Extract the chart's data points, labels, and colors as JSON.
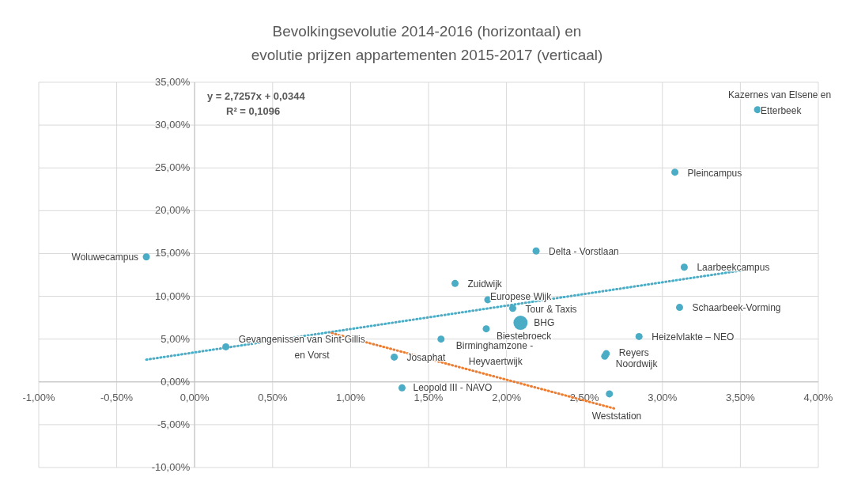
{
  "chart_data": {
    "type": "bubble",
    "title": "Bevolkingsevolutie  2014-2016 (horizontaal) en evolutie prijzen appartementen 2015-2017 (verticaal)",
    "xlim": [
      -0.01,
      0.04
    ],
    "xticks": [
      {
        "value": -0.01,
        "label": "-1,00%"
      },
      {
        "value": -0.005,
        "label": "-0,50%"
      },
      {
        "value": 0,
        "label": "0,00%"
      },
      {
        "value": 0.005,
        "label": "0,50%"
      },
      {
        "value": 0.01,
        "label": "1,00%"
      },
      {
        "value": 0.015,
        "label": "1,50%"
      },
      {
        "value": 0.02,
        "label": "2,00%"
      },
      {
        "value": 0.025,
        "label": "2,50%"
      },
      {
        "value": 0.03,
        "label": "3,00%"
      },
      {
        "value": 0.035,
        "label": "3,50%"
      },
      {
        "value": 0.04,
        "label": "4,00%"
      }
    ],
    "ylim": [
      -0.1,
      0.35
    ],
    "yticks": [
      {
        "value": -0.1,
        "label": "-10,00%"
      },
      {
        "value": -0.05,
        "label": "-5,00%"
      },
      {
        "value": 0,
        "label": "0,00%"
      },
      {
        "value": 0.05,
        "label": "5,00%"
      },
      {
        "value": 0.1,
        "label": "10,00%"
      },
      {
        "value": 0.15,
        "label": "15,00%"
      },
      {
        "value": 0.2,
        "label": "20,00%"
      },
      {
        "value": 0.25,
        "label": "25,00%"
      },
      {
        "value": 0.3,
        "label": "30,00%"
      },
      {
        "value": 0.35,
        "label": "35,00%"
      }
    ],
    "grid": true,
    "series": [
      {
        "color": "#4bacc6",
        "marker": "circle",
        "x": [
          -0.0031,
          0.0361,
          0.0308,
          0.0219,
          0.0314,
          0.0167,
          0.0188,
          0.0204,
          0.0209,
          0.0187,
          0.0158,
          0.0311,
          0.0285,
          0.0264,
          0.0263,
          0.002,
          0.0128,
          0.0133,
          0.0266
        ],
        "values": [
          0.146,
          0.318,
          0.245,
          0.153,
          0.134,
          0.115,
          0.096,
          0.086,
          0.069,
          0.062,
          0.05,
          0.087,
          0.053,
          0.033,
          0.03,
          0.041,
          0.029,
          -0.007,
          -0.014
        ],
        "sizes": [
          0.25,
          0.25,
          0.25,
          0.25,
          0.25,
          0.25,
          0.25,
          0.25,
          1,
          0.25,
          0.25,
          0.25,
          0.25,
          0.25,
          0.25,
          0.25,
          0.25,
          0.25,
          0.25
        ]
      },
      {
        "type": "line",
        "color": "#4bacc6",
        "line_style": "dotted",
        "x": [
          -0.0031,
          0.0361
        ],
        "values": [
          0.026,
          0.133
        ]
      },
      {
        "type": "line",
        "color": "#ed7d31",
        "line_style": "dotted",
        "x": [
          0.0088,
          0.0269
        ],
        "values": [
          0.057,
          -0.031
        ]
      }
    ],
    "annotations": [
      "y = 2,7257x  + 0,0344",
      "R² = 0,1096",
      {
        "text": "Woluwecampus",
        "x": -0.0031,
        "y": 0.146
      },
      {
        "text": "Kazernes van Elsene en Etterbeek",
        "x": 0.0361,
        "y": 0.318
      },
      {
        "text": "Pleincampus",
        "x": 0.0308,
        "y": 0.245
      },
      {
        "text": "Delta - Vorstlaan",
        "x": 0.0219,
        "y": 0.153
      },
      {
        "text": "Laarbeekcampus",
        "x": 0.0314,
        "y": 0.134
      },
      {
        "text": "Zuidwijk",
        "x": 0.0167,
        "y": 0.115
      },
      {
        "text": "Europese Wijk",
        "x": 0.0188,
        "y": 0.096
      },
      {
        "text": "Tour & Taxis",
        "x": 0.0204,
        "y": 0.086
      },
      {
        "text": "BHG",
        "x": 0.0209,
        "y": 0.069
      },
      {
        "text": "Biestebroeck",
        "x": 0.0187,
        "y": 0.062
      },
      {
        "text": "Birminghamzone - Heyvaertwijk",
        "x": 0.0158,
        "y": 0.05
      },
      {
        "text": "Schaarbeek-Vorming",
        "x": 0.0311,
        "y": 0.087
      },
      {
        "text": "Heizelvlakte – NEO",
        "x": 0.0285,
        "y": 0.053
      },
      {
        "text": "Reyers",
        "x": 0.0264,
        "y": 0.033
      },
      {
        "text": "Noordwijk",
        "x": 0.0263,
        "y": 0.03
      },
      {
        "text": "Gevangenissen van Sint-Gillis en Vorst",
        "x": 0.002,
        "y": 0.041
      },
      {
        "text": "Josaphat",
        "x": 0.0128,
        "y": 0.029
      },
      {
        "text": "Leopold III - NAVO",
        "x": 0.0133,
        "y": -0.007
      },
      {
        "text": "Weststation",
        "x": 0.0266,
        "y": -0.014
      }
    ]
  }
}
